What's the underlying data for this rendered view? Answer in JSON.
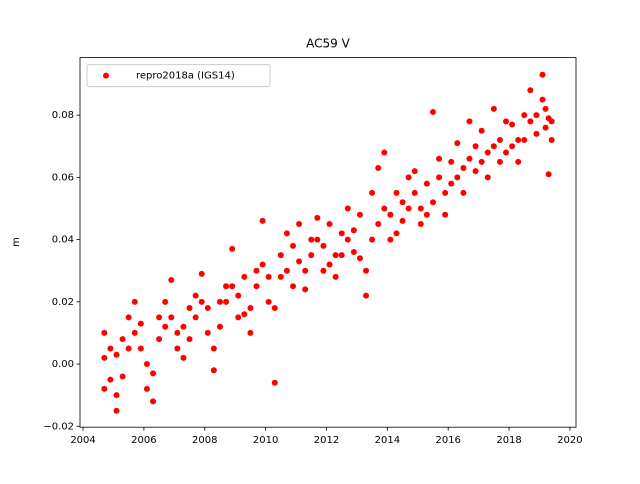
{
  "chart_data": {
    "type": "scatter",
    "title": "AC59 V",
    "y_label": "m",
    "xlim": [
      2003.9,
      2020.2
    ],
    "ylim": [
      -0.0203,
      0.0985
    ],
    "xticks": [
      2004,
      2006,
      2008,
      2010,
      2012,
      2014,
      2016,
      2018,
      2020
    ],
    "yticks": [
      {
        "value": -0.02,
        "label": "−0.02"
      },
      {
        "value": 0,
        "label": "0.00"
      },
      {
        "value": 0.02,
        "label": "0.02"
      },
      {
        "value": 0.04,
        "label": "0.04"
      },
      {
        "value": 0.06,
        "label": "0.06"
      },
      {
        "value": 0.08,
        "label": "0.08"
      }
    ],
    "grid": false,
    "legend": "upper left",
    "series": [
      {
        "name": "repro2018a (IGS14)",
        "color": "#ff0000",
        "x": [
          2004.7,
          2004.7,
          2004.7,
          2004.9,
          2004.9,
          2005.1,
          2005.1,
          2005.1,
          2005.3,
          2005.3,
          2005.5,
          2005.5,
          2005.7,
          2005.7,
          2005.9,
          2005.9,
          2006.1,
          2006.1,
          2006.3,
          2006.3,
          2006.5,
          2006.5,
          2006.7,
          2006.7,
          2006.9,
          2006.9,
          2007.1,
          2007.1,
          2007.3,
          2007.3,
          2007.5,
          2007.5,
          2007.7,
          2007.7,
          2007.9,
          2007.9,
          2008.1,
          2008.1,
          2008.3,
          2008.3,
          2008.5,
          2008.5,
          2008.7,
          2008.7,
          2008.9,
          2008.9,
          2009.1,
          2009.1,
          2009.3,
          2009.3,
          2009.5,
          2009.5,
          2009.7,
          2009.7,
          2009.9,
          2009.9,
          2010.1,
          2010.1,
          2010.3,
          2010.3,
          2010.5,
          2010.5,
          2010.7,
          2010.7,
          2010.9,
          2010.9,
          2011.1,
          2011.1,
          2011.3,
          2011.3,
          2011.5,
          2011.5,
          2011.7,
          2011.7,
          2011.9,
          2011.9,
          2012.1,
          2012.1,
          2012.3,
          2012.3,
          2012.5,
          2012.5,
          2012.7,
          2012.7,
          2012.9,
          2012.9,
          2013.1,
          2013.1,
          2013.3,
          2013.3,
          2013.5,
          2013.5,
          2013.7,
          2013.7,
          2013.9,
          2013.9,
          2014.1,
          2014.1,
          2014.3,
          2014.3,
          2014.5,
          2014.5,
          2014.7,
          2014.7,
          2014.9,
          2014.9,
          2015.1,
          2015.1,
          2015.3,
          2015.3,
          2015.5,
          2015.5,
          2015.7,
          2015.7,
          2015.9,
          2015.9,
          2016.1,
          2016.1,
          2016.3,
          2016.3,
          2016.5,
          2016.5,
          2016.7,
          2016.7,
          2016.9,
          2016.9,
          2017.1,
          2017.1,
          2017.3,
          2017.3,
          2017.5,
          2017.5,
          2017.7,
          2017.7,
          2017.9,
          2017.9,
          2018.1,
          2018.1,
          2018.3,
          2018.3,
          2018.5,
          2018.5,
          2018.7,
          2018.7,
          2018.9,
          2018.9,
          2019.1,
          2019.1,
          2019.2,
          2019.2,
          2019.3,
          2019.3,
          2019.4,
          2019.4
        ],
        "values": [
          0.002,
          -0.008,
          0.01,
          -0.005,
          0.005,
          -0.01,
          -0.015,
          0.003,
          -0.004,
          0.008,
          0.005,
          0.015,
          0.01,
          0.02,
          0.013,
          0.005,
          0.0,
          -0.008,
          -0.012,
          -0.003,
          0.008,
          0.015,
          0.012,
          0.02,
          0.015,
          0.027,
          0.01,
          0.005,
          0.002,
          0.012,
          0.008,
          0.018,
          0.015,
          0.022,
          0.02,
          0.029,
          0.018,
          0.01,
          0.005,
          -0.002,
          0.012,
          0.02,
          0.02,
          0.025,
          0.025,
          0.037,
          0.022,
          0.015,
          0.016,
          0.028,
          0.018,
          0.01,
          0.025,
          0.03,
          0.032,
          0.046,
          0.028,
          0.02,
          -0.006,
          0.018,
          0.028,
          0.035,
          0.03,
          0.042,
          0.038,
          0.025,
          0.033,
          0.045,
          0.03,
          0.024,
          0.035,
          0.04,
          0.04,
          0.047,
          0.038,
          0.03,
          0.032,
          0.045,
          0.028,
          0.035,
          0.035,
          0.042,
          0.04,
          0.05,
          0.043,
          0.036,
          0.034,
          0.048,
          0.022,
          0.03,
          0.04,
          0.055,
          0.045,
          0.063,
          0.05,
          0.068,
          0.048,
          0.04,
          0.042,
          0.055,
          0.046,
          0.052,
          0.05,
          0.06,
          0.055,
          0.062,
          0.05,
          0.045,
          0.048,
          0.058,
          0.052,
          0.081,
          0.06,
          0.066,
          0.055,
          0.048,
          0.058,
          0.065,
          0.06,
          0.071,
          0.063,
          0.055,
          0.066,
          0.078,
          0.062,
          0.07,
          0.065,
          0.075,
          0.068,
          0.06,
          0.07,
          0.082,
          0.072,
          0.065,
          0.068,
          0.078,
          0.07,
          0.077,
          0.065,
          0.072,
          0.072,
          0.08,
          0.078,
          0.088,
          0.08,
          0.074,
          0.085,
          0.093,
          0.076,
          0.082,
          0.061,
          0.079,
          0.072,
          0.078
        ]
      }
    ]
  }
}
